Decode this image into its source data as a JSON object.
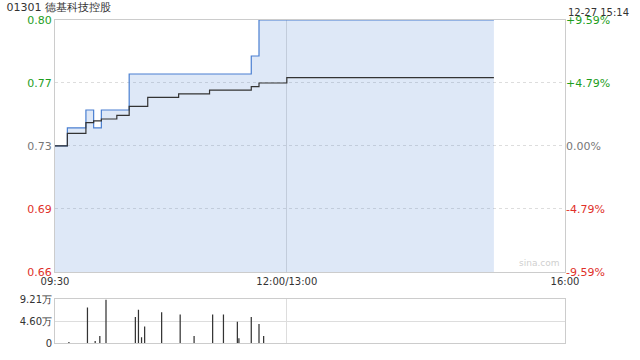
{
  "chart_data": [
    {
      "type": "line",
      "title": "01301 德基科技控股",
      "annotations": [
        "12-27 15:14",
        "sina.com"
      ],
      "x": [
        0,
        8,
        20,
        25,
        30,
        40,
        48,
        60,
        80,
        100,
        127,
        132,
        150,
        200,
        250,
        284
      ],
      "series": [
        {
          "type": "area",
          "color": "#4a7fd1",
          "values": [
            0.73,
            0.74,
            0.75,
            0.74,
            0.75,
            0.75,
            0.77,
            0.77,
            0.77,
            0.77,
            0.78,
            0.8,
            0.8,
            0.8,
            0.8,
            0.8
          ]
        },
        {
          "type": "line",
          "color": "#333333",
          "values": [
            0.73,
            0.737,
            0.743,
            0.744,
            0.745,
            0.747,
            0.752,
            0.757,
            0.759,
            0.761,
            0.763,
            0.765,
            0.768,
            0.768,
            0.768,
            0.768
          ]
        }
      ],
      "xlim": [
        0,
        330
      ],
      "xticks": [
        {
          "value": 0,
          "label": "09:30"
        },
        {
          "value": 150,
          "label": "12:00/13:00"
        },
        {
          "value": 330,
          "label": "16:00"
        }
      ],
      "ylim": [
        0.66,
        0.8
      ],
      "yticks": [
        0.66,
        {
          "value": 0.695,
          "label": "0.69"
        },
        0.73,
        {
          "value": 0.765,
          "label": "0.77"
        },
        {
          "value": 0.8,
          "label": "0.80"
        }
      ],
      "y2lim": [
        -9.59,
        9.59
      ],
      "y2ticks": [
        {
          "value": -9.59,
          "label": "-9.59%"
        },
        {
          "value": -4.79,
          "label": "-4.79%"
        },
        {
          "value": 0,
          "label": "0.00%"
        },
        {
          "value": 4.79,
          "label": "+4.79%"
        },
        {
          "value": 9.59,
          "label": "+9.59%"
        }
      ],
      "grid": true
    },
    {
      "type": "bar",
      "x": [
        9,
        21,
        26,
        29,
        33,
        52,
        54,
        56,
        58,
        69,
        81,
        90,
        102,
        109,
        118,
        119,
        127,
        132,
        135
      ],
      "values": [
        2000,
        75000,
        4000,
        15000,
        92100,
        55000,
        70000,
        12000,
        35000,
        65000,
        60000,
        15000,
        60000,
        60000,
        45000,
        10000,
        55000,
        40000,
        15000
      ],
      "color": "#333333",
      "xlim": [
        0,
        330
      ],
      "xticks": [
        0,
        150,
        330
      ],
      "ylim": [
        0,
        92100
      ],
      "yticks": [
        0,
        {
          "value": 46000,
          "label": "4.60万"
        },
        {
          "value": 92100,
          "label": "9.21万"
        }
      ],
      "tick_labels": "y",
      "grid": true
    }
  ]
}
